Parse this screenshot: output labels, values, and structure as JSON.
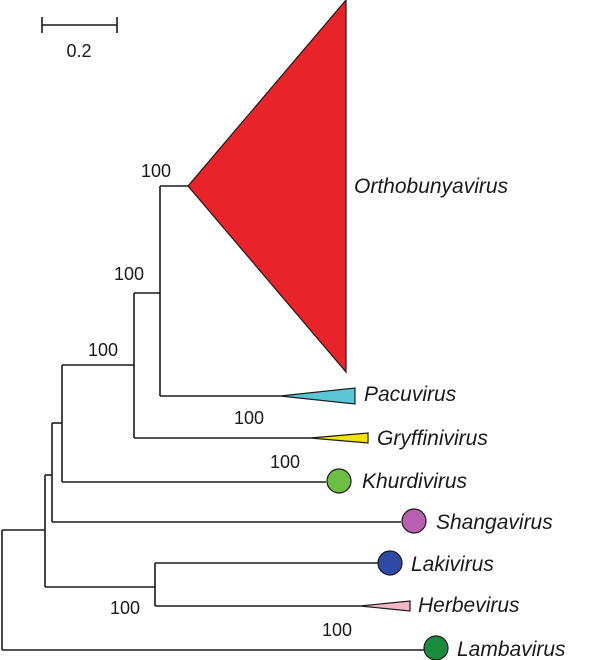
{
  "scale_bar": {
    "label": "0.2"
  },
  "support_values": {
    "orthobunyavirus_node": "100",
    "pacuvirus_node": "100",
    "gryffinivirus_node": "100",
    "outer_node": "100",
    "khurdivirus_node": "100",
    "lakivirus_node": "100",
    "herbevirus_node": "100"
  },
  "taxa": {
    "orthobunyavirus": "Orthobunyavirus",
    "pacuvirus": "Pacuvirus",
    "gryffinivirus": "Gryffinivirus",
    "khurdivirus": "Khurdivirus",
    "shangavirus": "Shangavirus",
    "lakivirus": "Lakivirus",
    "herbevirus": "Herbevirus",
    "lambavirus": "Lambavirus"
  },
  "colors": {
    "orthobunyavirus": "#e8232a",
    "pacuvirus": "#5bc7d6",
    "gryffinivirus": "#f2e200",
    "khurdivirus": "#6dbf44",
    "shangavirus": "#b85fb0",
    "lakivirus": "#2f4aa6",
    "herbevirus": "#f2b8c6",
    "lambavirus": "#1a8a3c"
  }
}
